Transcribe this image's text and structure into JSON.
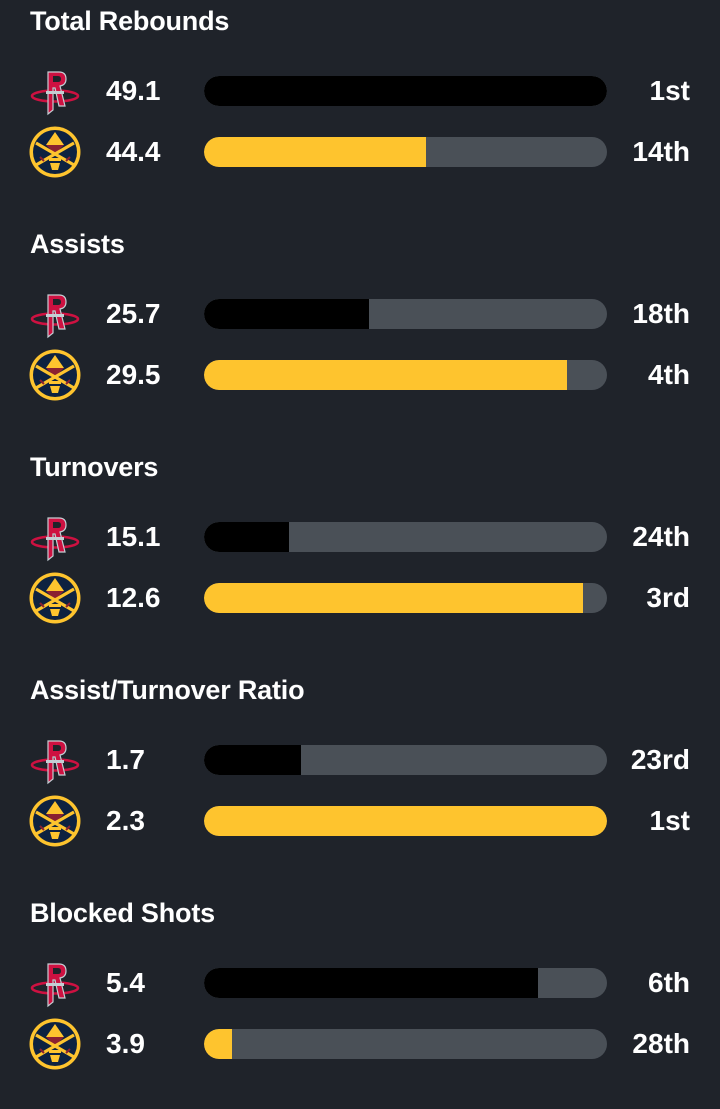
{
  "teams": [
    {
      "name": "Houston Rockets",
      "icon": "rockets-logo-icon",
      "color": "#000000"
    },
    {
      "name": "Denver Nuggets",
      "icon": "nuggets-logo-icon",
      "color": "#fec42e"
    }
  ],
  "bar_track_color": "#4a5057",
  "stats": [
    {
      "title": "Total Rebounds",
      "rows": [
        {
          "team": 0,
          "value": "49.1",
          "rank": "1st",
          "fill_pct": 100
        },
        {
          "team": 1,
          "value": "44.4",
          "rank": "14th",
          "fill_pct": 55
        }
      ]
    },
    {
      "title": "Assists",
      "rows": [
        {
          "team": 0,
          "value": "25.7",
          "rank": "18th",
          "fill_pct": 41
        },
        {
          "team": 1,
          "value": "29.5",
          "rank": "4th",
          "fill_pct": 90
        }
      ]
    },
    {
      "title": "Turnovers",
      "rows": [
        {
          "team": 0,
          "value": "15.1",
          "rank": "24th",
          "fill_pct": 21
        },
        {
          "team": 1,
          "value": "12.6",
          "rank": "3rd",
          "fill_pct": 94
        }
      ]
    },
    {
      "title": "Assist/Turnover Ratio",
      "rows": [
        {
          "team": 0,
          "value": "1.7",
          "rank": "23rd",
          "fill_pct": 24
        },
        {
          "team": 1,
          "value": "2.3",
          "rank": "1st",
          "fill_pct": 100
        }
      ]
    },
    {
      "title": "Blocked Shots",
      "rows": [
        {
          "team": 0,
          "value": "5.4",
          "rank": "6th",
          "fill_pct": 83
        },
        {
          "team": 1,
          "value": "3.9",
          "rank": "28th",
          "fill_pct": 7
        }
      ]
    }
  ]
}
